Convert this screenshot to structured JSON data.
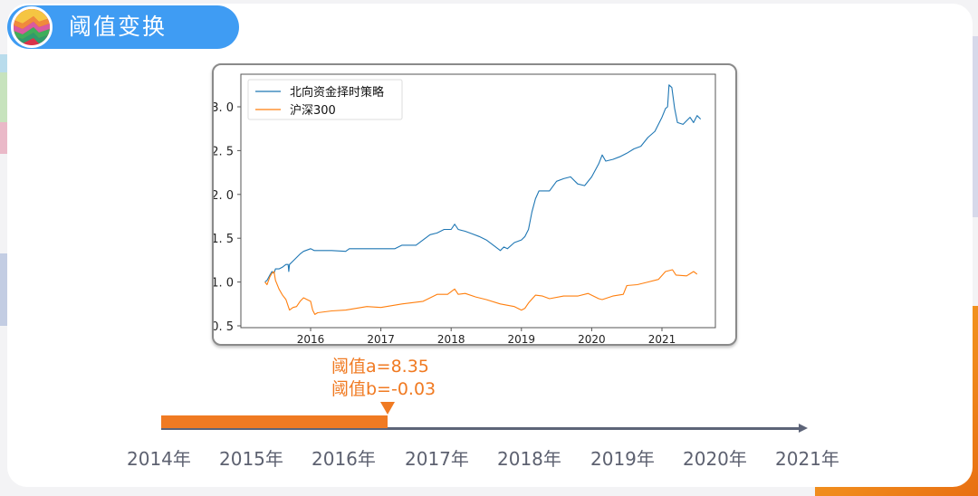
{
  "header": {
    "title": "阈值变换",
    "logo_icon": "rainbow-circle-logo"
  },
  "colors": {
    "title_pill": "#3f9cf3",
    "accent_orange": "#f07a22",
    "timeline_gray": "#5d6478",
    "series_strategy": "#1f77b4",
    "series_benchmark": "#ff7f0e"
  },
  "annotations": {
    "threshold_a": "阈值a=8.35",
    "threshold_b": "阈值b=-0.03"
  },
  "timeline": {
    "years": [
      "2014年",
      "2015年",
      "2016年",
      "2017年",
      "2018年",
      "2019年",
      "2020年",
      "2021年"
    ],
    "progress_end_label": "2016.5"
  },
  "chart_data": {
    "type": "line",
    "title": "",
    "xlabel": "",
    "ylabel": "",
    "legend_position": "upper left",
    "grid": false,
    "xlim": [
      2015.0,
      2021.85
    ],
    "ylim": [
      0.48,
      3.37
    ],
    "x_ticks": [
      "2016",
      "2017",
      "2018",
      "2019",
      "2020",
      "2021"
    ],
    "y_ticks": [
      "0.5",
      "1.0",
      "1.5",
      "2.0",
      "2.5",
      "3.0"
    ],
    "series": [
      {
        "name": "北向资金择时策略",
        "color": "#1f77b4",
        "points": [
          [
            2015.35,
            1.0
          ],
          [
            2015.38,
            1.02
          ],
          [
            2015.42,
            1.08
          ],
          [
            2015.45,
            1.12
          ],
          [
            2015.48,
            1.1
          ],
          [
            2015.5,
            1.15
          ],
          [
            2015.55,
            1.15
          ],
          [
            2015.6,
            1.17
          ],
          [
            2015.65,
            1.2
          ],
          [
            2015.68,
            1.2
          ],
          [
            2015.69,
            1.12
          ],
          [
            2015.7,
            1.2
          ],
          [
            2015.75,
            1.24
          ],
          [
            2015.8,
            1.28
          ],
          [
            2015.85,
            1.32
          ],
          [
            2015.9,
            1.35
          ],
          [
            2016.0,
            1.38
          ],
          [
            2016.05,
            1.36
          ],
          [
            2016.3,
            1.36
          ],
          [
            2016.5,
            1.35
          ],
          [
            2016.55,
            1.38
          ],
          [
            2016.9,
            1.38
          ],
          [
            2017.2,
            1.38
          ],
          [
            2017.3,
            1.42
          ],
          [
            2017.5,
            1.42
          ],
          [
            2017.6,
            1.48
          ],
          [
            2017.7,
            1.54
          ],
          [
            2017.8,
            1.56
          ],
          [
            2017.9,
            1.6
          ],
          [
            2018.0,
            1.6
          ],
          [
            2018.05,
            1.66
          ],
          [
            2018.1,
            1.6
          ],
          [
            2018.2,
            1.58
          ],
          [
            2018.3,
            1.55
          ],
          [
            2018.4,
            1.52
          ],
          [
            2018.5,
            1.48
          ],
          [
            2018.6,
            1.42
          ],
          [
            2018.7,
            1.36
          ],
          [
            2018.75,
            1.4
          ],
          [
            2018.8,
            1.38
          ],
          [
            2018.9,
            1.45
          ],
          [
            2019.0,
            1.48
          ],
          [
            2019.05,
            1.52
          ],
          [
            2019.1,
            1.6
          ],
          [
            2019.15,
            1.8
          ],
          [
            2019.2,
            1.95
          ],
          [
            2019.25,
            2.04
          ],
          [
            2019.4,
            2.04
          ],
          [
            2019.5,
            2.15
          ],
          [
            2019.6,
            2.18
          ],
          [
            2019.7,
            2.2
          ],
          [
            2019.8,
            2.12
          ],
          [
            2019.9,
            2.1
          ],
          [
            2020.0,
            2.2
          ],
          [
            2020.1,
            2.35
          ],
          [
            2020.15,
            2.45
          ],
          [
            2020.2,
            2.38
          ],
          [
            2020.3,
            2.4
          ],
          [
            2020.4,
            2.43
          ],
          [
            2020.5,
            2.47
          ],
          [
            2020.6,
            2.52
          ],
          [
            2020.7,
            2.55
          ],
          [
            2020.8,
            2.65
          ],
          [
            2020.9,
            2.72
          ],
          [
            2021.0,
            2.88
          ],
          [
            2021.05,
            2.98
          ],
          [
            2021.08,
            3.0
          ],
          [
            2021.1,
            3.25
          ],
          [
            2021.14,
            3.22
          ],
          [
            2021.18,
            2.98
          ],
          [
            2021.22,
            2.82
          ],
          [
            2021.3,
            2.8
          ],
          [
            2021.4,
            2.88
          ],
          [
            2021.45,
            2.82
          ],
          [
            2021.5,
            2.9
          ],
          [
            2021.55,
            2.86
          ]
        ]
      },
      {
        "name": "沪深300",
        "color": "#ff7f0e",
        "points": [
          [
            2015.35,
            1.0
          ],
          [
            2015.38,
            0.97
          ],
          [
            2015.42,
            1.06
          ],
          [
            2015.45,
            1.1
          ],
          [
            2015.48,
            1.12
          ],
          [
            2015.5,
            1.02
          ],
          [
            2015.55,
            0.92
          ],
          [
            2015.6,
            0.85
          ],
          [
            2015.65,
            0.8
          ],
          [
            2015.7,
            0.68
          ],
          [
            2015.75,
            0.71
          ],
          [
            2015.8,
            0.72
          ],
          [
            2015.85,
            0.78
          ],
          [
            2015.9,
            0.82
          ],
          [
            2015.95,
            0.8
          ],
          [
            2016.0,
            0.78
          ],
          [
            2016.03,
            0.68
          ],
          [
            2016.06,
            0.63
          ],
          [
            2016.1,
            0.65
          ],
          [
            2016.3,
            0.67
          ],
          [
            2016.5,
            0.68
          ],
          [
            2016.8,
            0.72
          ],
          [
            2017.0,
            0.71
          ],
          [
            2017.3,
            0.75
          ],
          [
            2017.6,
            0.78
          ],
          [
            2017.8,
            0.86
          ],
          [
            2017.95,
            0.86
          ],
          [
            2018.05,
            0.92
          ],
          [
            2018.1,
            0.86
          ],
          [
            2018.2,
            0.87
          ],
          [
            2018.35,
            0.83
          ],
          [
            2018.5,
            0.8
          ],
          [
            2018.7,
            0.75
          ],
          [
            2018.9,
            0.72
          ],
          [
            2019.0,
            0.68
          ],
          [
            2019.05,
            0.7
          ],
          [
            2019.1,
            0.76
          ],
          [
            2019.2,
            0.85
          ],
          [
            2019.3,
            0.84
          ],
          [
            2019.4,
            0.81
          ],
          [
            2019.6,
            0.84
          ],
          [
            2019.8,
            0.84
          ],
          [
            2019.95,
            0.87
          ],
          [
            2020.1,
            0.81
          ],
          [
            2020.15,
            0.8
          ],
          [
            2020.3,
            0.84
          ],
          [
            2020.45,
            0.86
          ],
          [
            2020.5,
            0.96
          ],
          [
            2020.65,
            0.97
          ],
          [
            2020.8,
            1.0
          ],
          [
            2020.95,
            1.03
          ],
          [
            2021.05,
            1.12
          ],
          [
            2021.15,
            1.14
          ],
          [
            2021.2,
            1.08
          ],
          [
            2021.35,
            1.07
          ],
          [
            2021.45,
            1.12
          ],
          [
            2021.5,
            1.09
          ]
        ]
      }
    ]
  }
}
